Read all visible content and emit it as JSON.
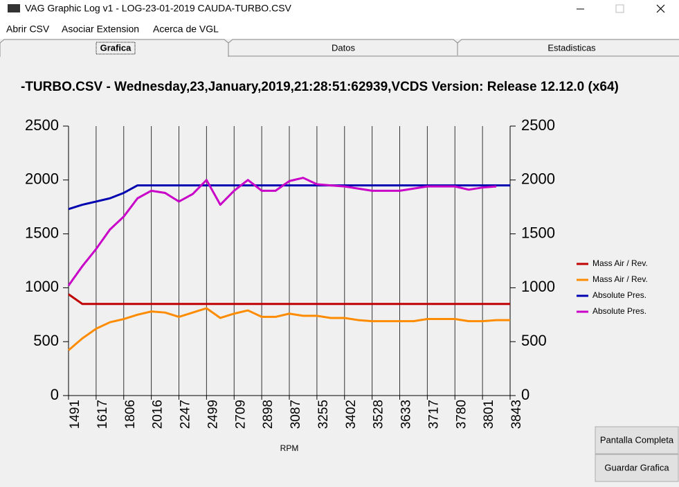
{
  "window": {
    "title": "VAG Graphic Log  v1 -  LOG-23-01-2019 CAUDA-TURBO.CSV"
  },
  "menu": [
    "Abrir CSV",
    "Asociar Extension",
    "Acerca de VGL"
  ],
  "tabs": [
    "Grafica",
    "Datos",
    "Estadisticas"
  ],
  "buttons": [
    "Pantalla Completa",
    "Guardar Grafica"
  ],
  "chart_data": {
    "type": "line",
    "title": "-TURBO.CSV - Wednesday,23,January,2019,21:28:51:62939,VCDS Version: Release 12.12.0 (x64)",
    "xlabel": "RPM",
    "categories": [
      "1491",
      null,
      "1617",
      null,
      "1806",
      null,
      "2016",
      null,
      "2247",
      null,
      "2499",
      null,
      "2709",
      null,
      "2898",
      null,
      "3087",
      null,
      "3255",
      null,
      "3402",
      null,
      "3528",
      null,
      "3633",
      null,
      "3717",
      null,
      "3780",
      null,
      "3801",
      null,
      "3843"
    ],
    "ylim": [
      0,
      2500
    ],
    "yticks": [
      0,
      500,
      1000,
      1500,
      2000,
      2500
    ],
    "y2lim": [
      0,
      2500
    ],
    "y2ticks": [
      0,
      500,
      1000,
      1500,
      2000,
      2500
    ],
    "grid": true,
    "legend": "right",
    "series": [
      {
        "name": "Mass Air / Rev.",
        "color": "#c00000",
        "values": [
          940,
          850,
          850,
          850,
          850,
          850,
          850,
          850,
          850,
          850,
          850,
          850,
          850,
          850,
          850,
          850,
          850,
          850,
          850,
          850,
          850,
          850,
          850,
          850,
          850,
          850,
          850,
          850,
          850,
          850,
          850,
          850,
          850
        ]
      },
      {
        "name": "Mass Air / Rev.",
        "color": "#ff8c00",
        "values": [
          420,
          530,
          620,
          680,
          710,
          750,
          780,
          770,
          730,
          770,
          810,
          720,
          760,
          790,
          730,
          730,
          760,
          740,
          740,
          720,
          720,
          700,
          690,
          690,
          690,
          690,
          710,
          710,
          710,
          690,
          690,
          700,
          700
        ]
      },
      {
        "name": "Absolute Pres.",
        "color": "#0000b0",
        "values": [
          1730,
          1770,
          1800,
          1830,
          1880,
          1950,
          1950,
          1950,
          1950,
          1950,
          1950,
          1950,
          1950,
          1950,
          1950,
          1950,
          1950,
          1950,
          1950,
          1950,
          1950,
          1950,
          1950,
          1950,
          1950,
          1950,
          1950,
          1950,
          1950,
          1950,
          1950,
          1950,
          1950
        ]
      },
      {
        "name": "Absolute Pres.",
        "color": "#c800c8",
        "values": [
          1020,
          1200,
          1360,
          1540,
          1660,
          1830,
          1900,
          1880,
          1800,
          1870,
          2000,
          1770,
          1900,
          2000,
          1900,
          1900,
          1990,
          2020,
          1960,
          1950,
          1940,
          1920,
          1900,
          1900,
          1900,
          1920,
          1940,
          1940,
          1940,
          1910,
          1930,
          1940,
          null
        ]
      }
    ]
  }
}
